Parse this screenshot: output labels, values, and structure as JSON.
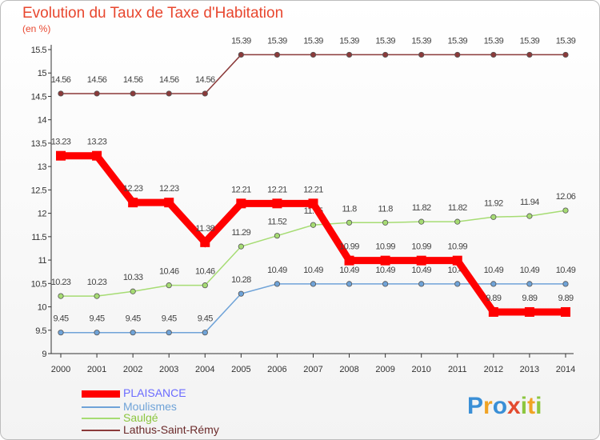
{
  "title": "Evolution du Taux de Taxe d'Habitation",
  "unit_label": "(en %)",
  "logo": {
    "text": "Proxiti",
    "letters": [
      "P",
      "r",
      "o",
      "x",
      "i",
      "t",
      "i"
    ],
    "colors": [
      "#3a8fd6",
      "#f0a324",
      "#3a8fd6",
      "#e34b2f",
      "#8cc63f",
      "#f0a324",
      "#8cc63f"
    ]
  },
  "chart_data": {
    "type": "line",
    "x": [
      "2000",
      "2001",
      "2002",
      "2003",
      "2004",
      "2005",
      "2006",
      "2007",
      "2008",
      "2009",
      "2010",
      "2011",
      "2012",
      "2013",
      "2014"
    ],
    "ylim": [
      9,
      15.5
    ],
    "yticks": [
      "9",
      "9.5",
      "10",
      "10.5",
      "11",
      "11.5",
      "12",
      "12.5",
      "13",
      "13.5",
      "14",
      "14.5",
      "15",
      "15.5"
    ],
    "grid": false,
    "legend_position": "bottom-left",
    "series": [
      {
        "name": "PLAISANCE",
        "color": "#ff0000",
        "label_color": "#6b6bff",
        "width": 9,
        "values": [
          13.23,
          13.23,
          12.23,
          12.23,
          11.38,
          12.21,
          12.21,
          12.21,
          10.99,
          10.99,
          10.99,
          10.99,
          9.89,
          9.89,
          9.89
        ],
        "labels": [
          "13.23",
          "13.23",
          "12.23",
          "12.23",
          "11.38",
          "12.21",
          "12.21",
          "12.21",
          "10.99",
          "10.99",
          "10.99",
          "10.99",
          "9.89",
          "9.89",
          "9.89"
        ]
      },
      {
        "name": "Moulismes",
        "color": "#6fa3d8",
        "label_color": "#6fa3d8",
        "width": 1.5,
        "values": [
          9.45,
          9.45,
          9.45,
          9.45,
          9.45,
          10.28,
          10.49,
          10.49,
          10.49,
          10.49,
          10.49,
          10.49,
          10.49,
          10.49,
          10.49
        ],
        "labels": [
          "9.45",
          "9.45",
          "9.45",
          "9.45",
          "9.45",
          "10.28",
          "10.49",
          "10.49",
          "10.49",
          "10.49",
          "10.49",
          "10.49",
          "10.49",
          "10.49",
          "10.49"
        ]
      },
      {
        "name": "Saulgé",
        "color": "#a6dc73",
        "label_color": "#8cc63f",
        "width": 1.5,
        "values": [
          10.23,
          10.23,
          10.33,
          10.46,
          10.46,
          11.29,
          11.52,
          11.75,
          11.8,
          11.8,
          11.82,
          11.82,
          11.92,
          11.94,
          12.06
        ],
        "labels": [
          "10.23",
          "10.23",
          "10.33",
          "10.46",
          "10.46",
          "11.29",
          "11.52",
          "11.75",
          "11.8",
          "11.8",
          "11.82",
          "11.82",
          "11.92",
          "11.94",
          "12.06"
        ]
      },
      {
        "name": "Lathus-Saint-Rémy",
        "color": "#8b3a3a",
        "label_color": "#6b2a2a",
        "width": 1.5,
        "values": [
          14.56,
          14.56,
          14.56,
          14.56,
          14.56,
          15.39,
          15.39,
          15.39,
          15.39,
          15.39,
          15.39,
          15.39,
          15.39,
          15.39,
          15.39
        ],
        "labels": [
          "14.56",
          "14.56",
          "14.56",
          "14.56",
          "14.56",
          "15.39",
          "15.39",
          "15.39",
          "15.39",
          "15.39",
          "15.39",
          "15.39",
          "15.39",
          "15.39",
          "15.39"
        ]
      }
    ]
  }
}
